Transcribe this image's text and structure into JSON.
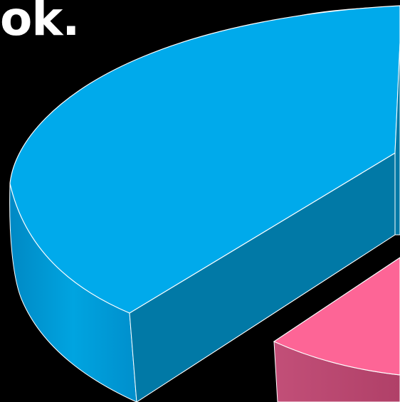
{
  "title_fragment": "ok.",
  "chart_data": {
    "type": "pie",
    "style": "3d-exploded",
    "title": "",
    "slices": [
      {
        "label": "",
        "color": "#00aaeb"
      },
      {
        "label": "",
        "color": "#fd6596"
      }
    ]
  }
}
